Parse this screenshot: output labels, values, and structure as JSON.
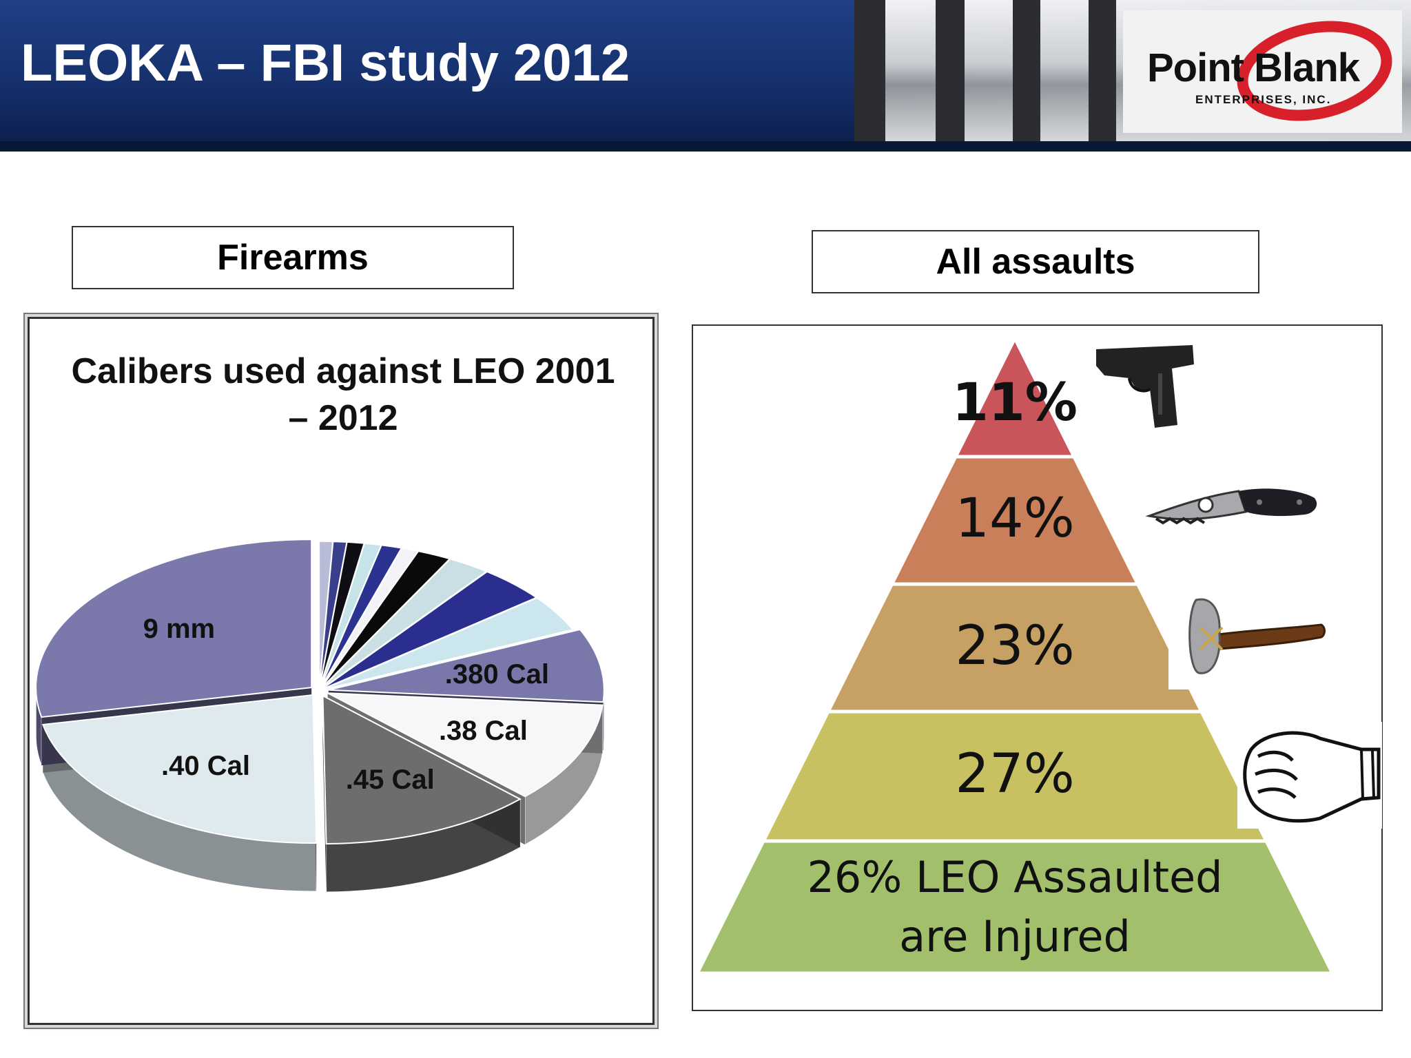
{
  "header": {
    "title": "LEOKA – FBI study 2012",
    "logo_name": "Point Blank",
    "logo_sub": "ENTERPRISES, INC."
  },
  "captions": {
    "left": "Firearms",
    "right": "All assaults"
  },
  "chart_data": [
    {
      "type": "pie",
      "title": "Calibers used against LEO 2001 – 2012",
      "slices": [
        {
          "label": "",
          "value": 0.8,
          "color": "#b8bcd6"
        },
        {
          "label": "",
          "value": 0.8,
          "color": "#3a3f8c"
        },
        {
          "label": "",
          "value": 1.0,
          "color": "#0e0e14"
        },
        {
          "label": "",
          "value": 1.0,
          "color": "#c7e3ea"
        },
        {
          "label": "",
          "value": 1.2,
          "color": "#2b3290"
        },
        {
          "label": "",
          "value": 1.0,
          "color": "#f2f2f7"
        },
        {
          "label": "",
          "value": 2.0,
          "color": "#0a0a0a"
        },
        {
          "label": "",
          "value": 2.5,
          "color": "#c9dfe4"
        },
        {
          "label": "",
          "value": 4.0,
          "color": "#2a2f8f"
        },
        {
          "label": "",
          "value": 4.0,
          "color": "#cbe6ec"
        },
        {
          "label": ".380 Cal",
          "value": 8.0,
          "color": "#7a78aa"
        },
        {
          "label": ".38 Cal",
          "value": 11.0,
          "color": "#f7f7fa"
        },
        {
          "label": ".45 Cal",
          "value": 12.5,
          "color": "#6d6d70"
        },
        {
          "label": ".40 Cal",
          "value": 22.0,
          "color": "#dfeaee"
        },
        {
          "label": "9 mm",
          "value": 28.2,
          "color": "#7b78ab"
        }
      ]
    },
    {
      "type": "pyramid",
      "levels": [
        {
          "label": "11%",
          "value": 11,
          "color": "#c9555a",
          "icon": "handgun-icon"
        },
        {
          "label": "14%",
          "value": 14,
          "color": "#c9805a",
          "icon": "knife-icon"
        },
        {
          "label": "23%",
          "value": 23,
          "color": "#c7a063",
          "icon": "hatchet-icon"
        },
        {
          "label": "27%",
          "value": 27,
          "color": "#c8c161",
          "icon": "fist-icon"
        },
        {
          "label": "26% LEO Assaulted are Injured",
          "value": 26,
          "color": "#a2c06b",
          "icon": ""
        }
      ]
    }
  ]
}
